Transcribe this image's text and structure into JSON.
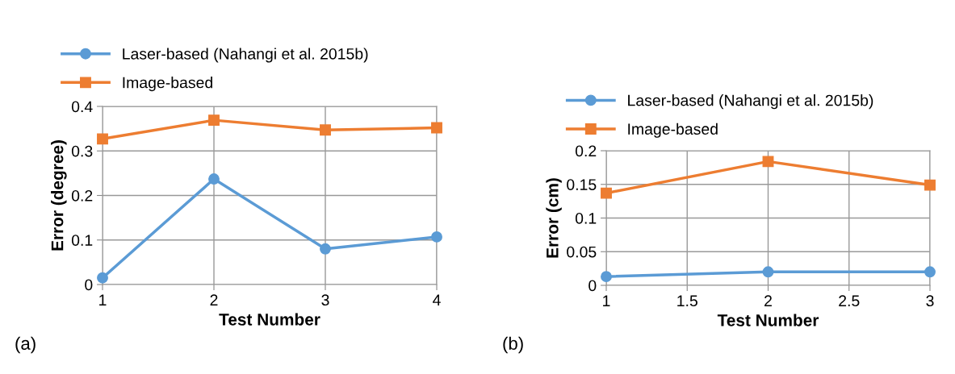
{
  "chart_data": [
    {
      "type": "line",
      "xlabel": "Test Number",
      "ylabel": "Error (degree)",
      "x": [
        1,
        2,
        3,
        4
      ],
      "xlim": [
        1,
        4
      ],
      "xticks": [
        1,
        2,
        3,
        4
      ],
      "ylim": [
        0,
        0.4
      ],
      "yticks": [
        0,
        0.1,
        0.2,
        0.3,
        0.4
      ],
      "grid": true,
      "legend": "top",
      "annotations": [
        "(a)"
      ],
      "series": [
        {
          "name": "Laser-based (Nahangi et al. 2015b)",
          "color": "#5b9bd5",
          "marker": "circle",
          "values": [
            0.015,
            0.237,
            0.08,
            0.107
          ]
        },
        {
          "name": "Image-based",
          "color": "#ed7d31",
          "marker": "square",
          "values": [
            0.327,
            0.369,
            0.347,
            0.352
          ]
        }
      ]
    },
    {
      "type": "line",
      "xlabel": "Test Number",
      "ylabel": "Error (cm)",
      "x": [
        1,
        2,
        3
      ],
      "xlim": [
        1,
        3
      ],
      "xticks": [
        1,
        1.5,
        2,
        2.5,
        3
      ],
      "ylim": [
        0,
        0.2
      ],
      "yticks": [
        0,
        0.05,
        0.1,
        0.15,
        0.2
      ],
      "grid": true,
      "legend": "top",
      "annotations": [
        "(b)"
      ],
      "series": [
        {
          "name": "Laser-based (Nahangi et al. 2015b)",
          "color": "#5b9bd5",
          "marker": "circle",
          "values": [
            0.013,
            0.02,
            0.02
          ]
        },
        {
          "name": "Image-based",
          "color": "#ed7d31",
          "marker": "square",
          "values": [
            0.137,
            0.184,
            0.149
          ]
        }
      ]
    }
  ]
}
